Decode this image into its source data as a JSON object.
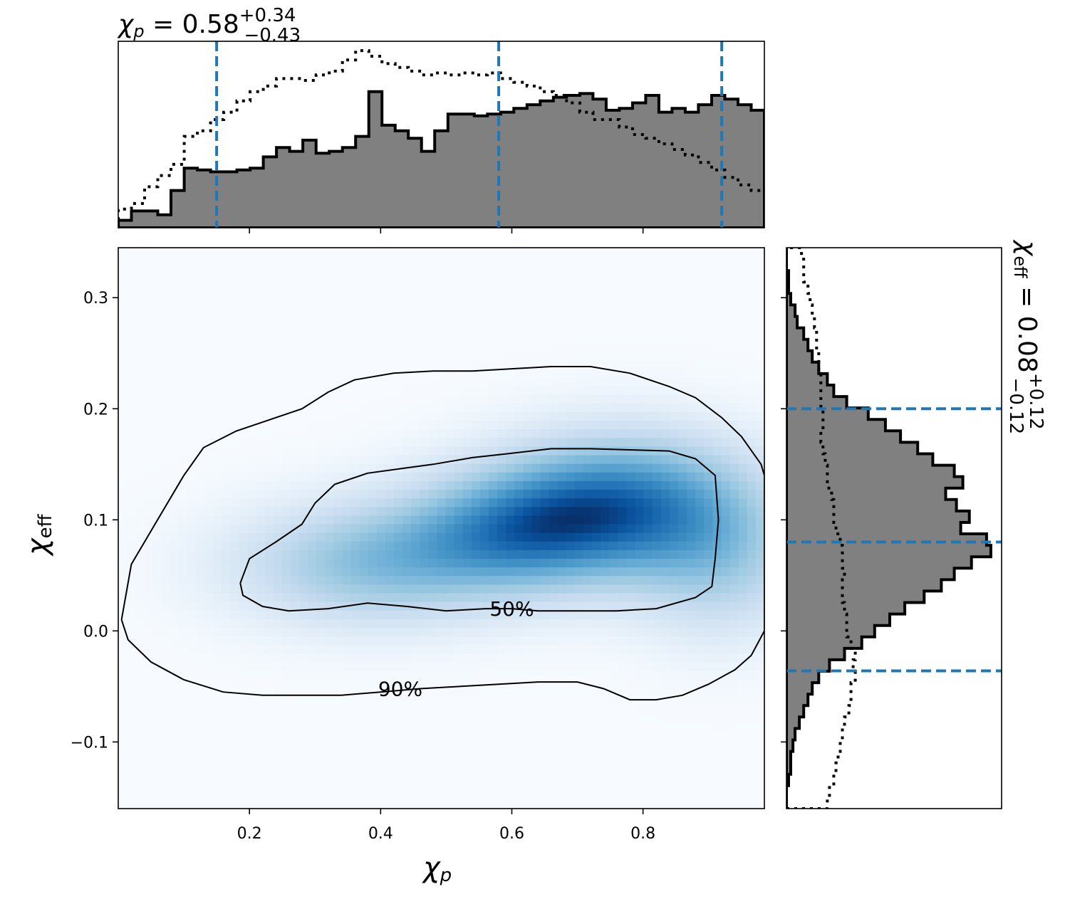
{
  "chart_data": [
    {
      "type": "heatmap",
      "panel": "joint-density",
      "xlabel_symbol": "χ",
      "xlabel_sub": "p",
      "ylabel_symbol": "χ",
      "ylabel_sub": "eff",
      "xlim": [
        0.0,
        0.985
      ],
      "ylim": [
        -0.16,
        0.345
      ],
      "xticks": [
        0.2,
        0.4,
        0.6,
        0.8
      ],
      "yticks": [
        -0.1,
        0.0,
        0.1,
        0.2,
        0.3
      ],
      "xtick_labels": [
        "0.2",
        "0.4",
        "0.6",
        "0.8"
      ],
      "ytick_labels": [
        "−0.1",
        "0.0",
        "0.1",
        "0.2",
        "0.3"
      ],
      "grid": false,
      "colormap": "Blues",
      "density_peaks": [
        {
          "x": 0.78,
          "y": 0.12,
          "sx": 0.14,
          "sy": 0.045,
          "w": 1.0
        },
        {
          "x": 0.62,
          "y": 0.09,
          "sx": 0.13,
          "sy": 0.04,
          "w": 0.95
        },
        {
          "x": 0.38,
          "y": 0.06,
          "sx": 0.15,
          "sy": 0.04,
          "w": 0.75
        },
        {
          "x": 0.92,
          "y": 0.06,
          "sx": 0.1,
          "sy": 0.05,
          "w": 0.55
        }
      ],
      "contours": [
        {
          "label": "50%",
          "label_at": [
            0.6,
            0.02
          ],
          "points": [
            [
              0.186,
              0.043
            ],
            [
              0.2,
              0.065
            ],
            [
              0.24,
              0.08
            ],
            [
              0.28,
              0.096
            ],
            [
              0.3,
              0.115
            ],
            [
              0.33,
              0.132
            ],
            [
              0.38,
              0.142
            ],
            [
              0.43,
              0.146
            ],
            [
              0.48,
              0.15
            ],
            [
              0.54,
              0.156
            ],
            [
              0.6,
              0.16
            ],
            [
              0.66,
              0.164
            ],
            [
              0.72,
              0.164
            ],
            [
              0.78,
              0.163
            ],
            [
              0.84,
              0.162
            ],
            [
              0.88,
              0.155
            ],
            [
              0.91,
              0.14
            ],
            [
              0.915,
              0.1
            ],
            [
              0.91,
              0.065
            ],
            [
              0.905,
              0.04
            ],
            [
              0.88,
              0.03
            ],
            [
              0.82,
              0.02
            ],
            [
              0.76,
              0.018
            ],
            [
              0.7,
              0.018
            ],
            [
              0.64,
              0.018
            ],
            [
              0.6,
              0.02
            ],
            [
              0.56,
              0.02
            ],
            [
              0.5,
              0.018
            ],
            [
              0.44,
              0.022
            ],
            [
              0.38,
              0.025
            ],
            [
              0.32,
              0.02
            ],
            [
              0.26,
              0.018
            ],
            [
              0.22,
              0.022
            ],
            [
              0.19,
              0.032
            ],
            [
              0.186,
              0.043
            ]
          ]
        },
        {
          "label": "90%",
          "label_at": [
            0.43,
            -0.052
          ],
          "points": [
            [
              0.005,
              0.01
            ],
            [
              0.02,
              0.06
            ],
            [
              0.06,
              0.1
            ],
            [
              0.1,
              0.14
            ],
            [
              0.13,
              0.165
            ],
            [
              0.18,
              0.18
            ],
            [
              0.23,
              0.19
            ],
            [
              0.28,
              0.2
            ],
            [
              0.32,
              0.215
            ],
            [
              0.36,
              0.226
            ],
            [
              0.42,
              0.232
            ],
            [
              0.48,
              0.234
            ],
            [
              0.54,
              0.234
            ],
            [
              0.6,
              0.236
            ],
            [
              0.66,
              0.238
            ],
            [
              0.72,
              0.238
            ],
            [
              0.78,
              0.232
            ],
            [
              0.84,
              0.22
            ],
            [
              0.88,
              0.21
            ],
            [
              0.92,
              0.192
            ],
            [
              0.95,
              0.175
            ],
            [
              0.98,
              0.15
            ],
            [
              0.985,
              0.14
            ],
            [
              0.985,
              0.0
            ],
            [
              0.965,
              -0.022
            ],
            [
              0.94,
              -0.035
            ],
            [
              0.9,
              -0.048
            ],
            [
              0.86,
              -0.058
            ],
            [
              0.82,
              -0.062
            ],
            [
              0.78,
              -0.062
            ],
            [
              0.74,
              -0.052
            ],
            [
              0.7,
              -0.046
            ],
            [
              0.64,
              -0.046
            ],
            [
              0.58,
              -0.048
            ],
            [
              0.52,
              -0.05
            ],
            [
              0.46,
              -0.052
            ],
            [
              0.4,
              -0.055
            ],
            [
              0.34,
              -0.058
            ],
            [
              0.28,
              -0.058
            ],
            [
              0.22,
              -0.058
            ],
            [
              0.16,
              -0.055
            ],
            [
              0.1,
              -0.044
            ],
            [
              0.05,
              -0.028
            ],
            [
              0.015,
              -0.008
            ],
            [
              0.005,
              0.01
            ]
          ]
        }
      ]
    },
    {
      "type": "bar",
      "panel": "top-marginal",
      "title_symbol": "χ",
      "title_sub": "p",
      "title_value": " = 0.58",
      "title_sup": "+0.34",
      "title_subscript_err": "−0.43",
      "xlim": [
        0.0,
        0.985
      ],
      "bins": 49,
      "fill_color": "#808080",
      "series": [
        {
          "name": "",
          "style": "filled-step",
          "values": [
            0.04,
            0.09,
            0.09,
            0.07,
            0.2,
            0.32,
            0.31,
            0.3,
            0.3,
            0.31,
            0.32,
            0.38,
            0.43,
            0.41,
            0.47,
            0.4,
            0.41,
            0.43,
            0.49,
            0.73,
            0.55,
            0.52,
            0.48,
            0.41,
            0.52,
            0.61,
            0.61,
            0.6,
            0.61,
            0.62,
            0.64,
            0.66,
            0.68,
            0.7,
            0.71,
            0.72,
            0.69,
            0.63,
            0.64,
            0.67,
            0.71,
            0.62,
            0.64,
            0.62,
            0.66,
            0.71,
            0.69,
            0.66,
            0.63
          ]
        },
        {
          "name": "",
          "style": "dotted-step",
          "values": [
            0.1,
            0.13,
            0.22,
            0.28,
            0.34,
            0.49,
            0.52,
            0.58,
            0.62,
            0.68,
            0.73,
            0.76,
            0.8,
            0.8,
            0.79,
            0.82,
            0.84,
            0.9,
            0.95,
            0.92,
            0.88,
            0.86,
            0.84,
            0.82,
            0.83,
            0.82,
            0.83,
            0.82,
            0.83,
            0.8,
            0.78,
            0.76,
            0.73,
            0.71,
            0.67,
            0.62,
            0.58,
            0.58,
            0.54,
            0.5,
            0.48,
            0.45,
            0.42,
            0.39,
            0.35,
            0.31,
            0.27,
            0.23,
            0.2
          ]
        }
      ],
      "quantile_lines": [
        0.15,
        0.58,
        0.92
      ]
    },
    {
      "type": "bar",
      "panel": "right-marginal",
      "orientation": "horizontal",
      "title_symbol": "χ",
      "title_sub": "eff",
      "title_value": " = 0.08",
      "title_sup": "+0.12",
      "title_subscript_err": "−0.12",
      "ylim": [
        -0.16,
        0.345
      ],
      "bins": 49,
      "fill_color": "#808080",
      "series": [
        {
          "name": "",
          "style": "filled-step",
          "values": [
            0.0,
            0.0,
            0.01,
            0.02,
            0.02,
            0.03,
            0.04,
            0.06,
            0.08,
            0.1,
            0.12,
            0.15,
            0.2,
            0.27,
            0.35,
            0.41,
            0.48,
            0.55,
            0.64,
            0.72,
            0.78,
            0.86,
            0.95,
            0.93,
            0.81,
            0.85,
            0.79,
            0.74,
            0.82,
            0.78,
            0.68,
            0.61,
            0.53,
            0.46,
            0.38,
            0.28,
            0.22,
            0.19,
            0.15,
            0.12,
            0.1,
            0.08,
            0.05,
            0.04,
            0.02,
            0.01,
            0.01,
            0.0,
            0.0
          ]
        },
        {
          "name": "",
          "style": "dotted-step",
          "values": [
            0.19,
            0.2,
            0.22,
            0.23,
            0.24,
            0.25,
            0.26,
            0.27,
            0.29,
            0.3,
            0.3,
            0.32,
            0.31,
            0.32,
            0.3,
            0.28,
            0.28,
            0.27,
            0.26,
            0.26,
            0.27,
            0.26,
            0.26,
            0.25,
            0.23,
            0.22,
            0.22,
            0.21,
            0.19,
            0.19,
            0.18,
            0.17,
            0.16,
            0.17,
            0.17,
            0.16,
            0.16,
            0.16,
            0.15,
            0.15,
            0.14,
            0.14,
            0.13,
            0.12,
            0.11,
            0.1,
            0.08,
            0.08,
            0.07
          ]
        }
      ],
      "quantile_lines": [
        -0.036,
        0.08,
        0.2
      ]
    }
  ]
}
